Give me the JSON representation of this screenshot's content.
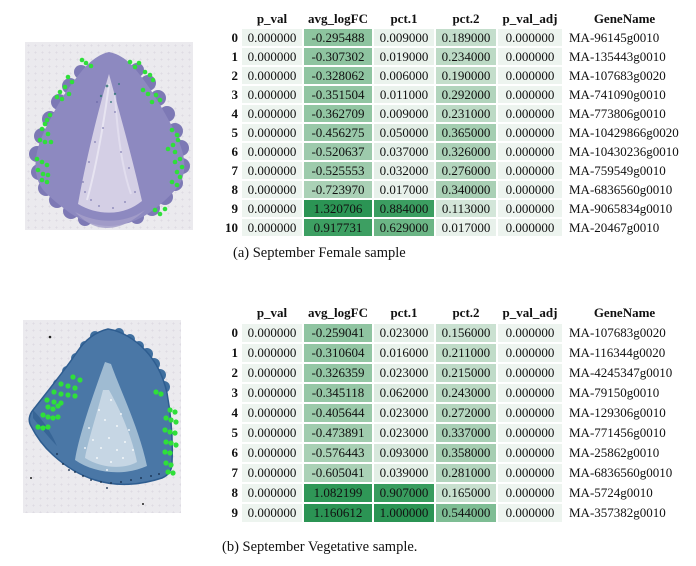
{
  "heatmap": {
    "description": "green background gradient applied to numeric cells",
    "stops": [
      [
        "0",
        "#edf4ef"
      ],
      [
        "0.2",
        "#c8e0cf"
      ],
      [
        "0.4",
        "#a5ceb2"
      ],
      [
        "0.6",
        "#79bb90"
      ],
      [
        "0.8",
        "#4aa76c"
      ],
      [
        "1",
        "#2b9454"
      ]
    ],
    "gamma": 0.9
  },
  "chart_data": [
    {
      "type": "table",
      "title": "(a) September Female sample",
      "columns": [
        "p_val",
        "avg_logFC",
        "pct.1",
        "pct.2",
        "p_val_adj",
        "GeneName"
      ],
      "index": [
        "0",
        "1",
        "2",
        "3",
        "4",
        "5",
        "6",
        "7",
        "8",
        "9",
        "10"
      ],
      "rows": [
        [
          "0.000000",
          "-0.295488",
          "0.009000",
          "0.189000",
          "0.000000",
          "MA-96145g0010"
        ],
        [
          "0.000000",
          "-0.307302",
          "0.019000",
          "0.234000",
          "0.000000",
          "MA-135443g0010"
        ],
        [
          "0.000000",
          "-0.328062",
          "0.006000",
          "0.190000",
          "0.000000",
          "MA-107683g0020"
        ],
        [
          "0.000000",
          "-0.351504",
          "0.011000",
          "0.292000",
          "0.000000",
          "MA-741090g0010"
        ],
        [
          "0.000000",
          "-0.362709",
          "0.009000",
          "0.231000",
          "0.000000",
          "MA-773806g0010"
        ],
        [
          "0.000000",
          "-0.456275",
          "0.050000",
          "0.365000",
          "0.000000",
          "MA-10429866g0020"
        ],
        [
          "0.000000",
          "-0.520637",
          "0.037000",
          "0.326000",
          "0.000000",
          "MA-10430236g0010"
        ],
        [
          "0.000000",
          "-0.525553",
          "0.032000",
          "0.276000",
          "0.000000",
          "MA-759549g0010"
        ],
        [
          "0.000000",
          "-0.723970",
          "0.017000",
          "0.340000",
          "0.000000",
          "MA-6836560g0010"
        ],
        [
          "0.000000",
          "1.320706",
          "0.884000",
          "0.113000",
          "0.000000",
          "MA-9065834g0010"
        ],
        [
          "0.000000",
          "0.917731",
          "0.629000",
          "0.017000",
          "0.000000",
          "MA-20467g0010"
        ]
      ]
    },
    {
      "type": "table",
      "title": "(b) September Vegetative sample.",
      "columns": [
        "p_val",
        "avg_logFC",
        "pct.1",
        "pct.2",
        "p_val_adj",
        "GeneName"
      ],
      "index": [
        "0",
        "1",
        "2",
        "3",
        "4",
        "5",
        "6",
        "7",
        "8",
        "9"
      ],
      "rows": [
        [
          "0.000000",
          "-0.259041",
          "0.023000",
          "0.156000",
          "0.000000",
          "MA-107683g0020"
        ],
        [
          "0.000000",
          "-0.310604",
          "0.016000",
          "0.211000",
          "0.000000",
          "MA-116344g0020"
        ],
        [
          "0.000000",
          "-0.326359",
          "0.023000",
          "0.215000",
          "0.000000",
          "MA-4245347g0010"
        ],
        [
          "0.000000",
          "-0.345118",
          "0.062000",
          "0.243000",
          "0.000000",
          "MA-79150g0010"
        ],
        [
          "0.000000",
          "-0.405644",
          "0.023000",
          "0.272000",
          "0.000000",
          "MA-129306g0010"
        ],
        [
          "0.000000",
          "-0.473891",
          "0.023000",
          "0.337000",
          "0.000000",
          "MA-771456g0010"
        ],
        [
          "0.000000",
          "-0.576443",
          "0.093000",
          "0.358000",
          "0.000000",
          "MA-25862g0010"
        ],
        [
          "0.000000",
          "-0.605041",
          "0.039000",
          "0.281000",
          "0.000000",
          "MA-6836560g0010"
        ],
        [
          "0.000000",
          "1.082199",
          "0.907000",
          "0.165000",
          "0.000000",
          "MA-5724g0010"
        ],
        [
          "0.000000",
          "1.160612",
          "1.000000",
          "0.544000",
          "0.000000",
          "MA-357382g0010"
        ]
      ]
    }
  ],
  "panels": [
    {
      "caption": "(a) September Female sample",
      "image": {
        "label": "stained tissue section, female sample, with marked spots",
        "tissue_color": "#8d89c0",
        "dot_color": "#2fdf3a",
        "dot_radius": 2.3,
        "dots": [
          [
            57,
            18
          ],
          [
            61,
            21
          ],
          [
            66,
            24
          ],
          [
            105,
            20
          ],
          [
            110,
            25
          ],
          [
            114,
            21
          ],
          [
            120,
            30
          ],
          [
            125,
            33
          ],
          [
            128,
            38
          ],
          [
            43,
            35
          ],
          [
            47,
            40
          ],
          [
            40,
            45
          ],
          [
            44,
            52
          ],
          [
            35,
            50
          ],
          [
            32,
            55
          ],
          [
            37,
            57
          ],
          [
            118,
            48
          ],
          [
            123,
            52
          ],
          [
            131,
            53
          ],
          [
            135,
            58
          ],
          [
            127,
            60
          ],
          [
            22,
            78
          ],
          [
            25,
            73
          ],
          [
            20,
            82
          ],
          [
            17,
            87
          ],
          [
            23,
            92
          ],
          [
            15,
            98
          ],
          [
            20,
            100
          ],
          [
            26,
            100
          ],
          [
            147,
            88
          ],
          [
            152,
            93
          ],
          [
            153,
            98
          ],
          [
            148,
            103
          ],
          [
            143,
            107
          ],
          [
            150,
            110
          ],
          [
            12,
            117
          ],
          [
            17,
            120
          ],
          [
            22,
            123
          ],
          [
            13,
            128
          ],
          [
            18,
            132
          ],
          [
            23,
            133
          ],
          [
            17,
            138
          ],
          [
            22,
            140
          ],
          [
            155,
            117
          ],
          [
            150,
            120
          ],
          [
            157,
            125
          ],
          [
            152,
            130
          ],
          [
            155,
            135
          ],
          [
            147,
            140
          ],
          [
            152,
            143
          ],
          [
            130,
            168
          ],
          [
            135,
            172
          ],
          [
            140,
            167
          ]
        ]
      }
    },
    {
      "caption": "(b) September Vegetative sample.",
      "image": {
        "label": "stained tissue section, vegetative sample, with marked spots",
        "tissue_color": "#4a77a6",
        "dot_color": "#2fdf3a",
        "dot_radius": 2.6,
        "dots": [
          [
            50,
            57
          ],
          [
            57,
            60
          ],
          [
            38,
            64
          ],
          [
            45,
            66
          ],
          [
            52,
            68
          ],
          [
            31,
            72
          ],
          [
            38,
            74
          ],
          [
            45,
            75
          ],
          [
            52,
            76
          ],
          [
            24,
            80
          ],
          [
            31,
            82
          ],
          [
            38,
            83
          ],
          [
            25,
            87
          ],
          [
            30,
            89
          ],
          [
            35,
            86
          ],
          [
            20,
            95
          ],
          [
            25,
            97
          ],
          [
            30,
            98
          ],
          [
            35,
            97
          ],
          [
            15,
            107
          ],
          [
            20,
            108
          ],
          [
            25,
            107
          ],
          [
            133,
            72
          ],
          [
            138,
            74
          ],
          [
            147,
            90
          ],
          [
            152,
            92
          ],
          [
            143,
            98
          ],
          [
            148,
            100
          ],
          [
            153,
            102
          ],
          [
            142,
            110
          ],
          [
            147,
            112
          ],
          [
            152,
            113
          ],
          [
            143,
            122
          ],
          [
            148,
            123
          ],
          [
            153,
            125
          ],
          [
            142,
            132
          ],
          [
            147,
            133
          ],
          [
            143,
            143
          ],
          [
            148,
            145
          ],
          [
            145,
            152
          ],
          [
            150,
            153
          ]
        ]
      }
    }
  ]
}
